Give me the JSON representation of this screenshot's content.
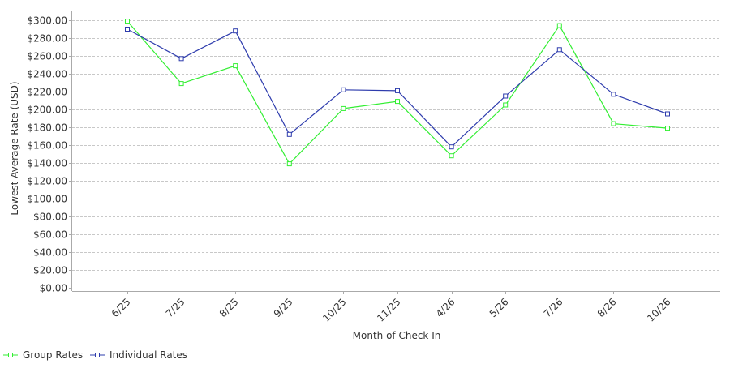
{
  "chart_data": {
    "type": "line",
    "categories": [
      "6/25",
      "7/25",
      "8/25",
      "9/25",
      "10/25",
      "11/25",
      "4/26",
      "5/26",
      "7/26",
      "8/26",
      "10/26"
    ],
    "series": [
      {
        "name": "Group Rates",
        "color": "#33ee33",
        "values": [
          299,
          229,
          249,
          139,
          201,
          209,
          148,
          205,
          294,
          184,
          179
        ]
      },
      {
        "name": "Individual Rates",
        "color": "#2e3cad",
        "values": [
          290,
          257,
          288,
          172,
          222,
          221,
          158,
          215,
          267,
          217,
          195
        ]
      }
    ],
    "xlabel": "Month of Check In",
    "ylabel": "Lowest Average Rate (USD)",
    "ylim": [
      0,
      300
    ],
    "ytick_step": 20,
    "ytick_labels": [
      "$0.00",
      "$20.00",
      "$40.00",
      "$60.00",
      "$80.00",
      "$100.00",
      "$120.00",
      "$140.00",
      "$160.00",
      "$180.00",
      "$200.00",
      "$220.00",
      "$240.00",
      "$260.00",
      "$280.00",
      "$300.00"
    ],
    "grid": true,
    "legend": "bottom-left",
    "colors": {
      "grid": "#c8c8c8",
      "axis": "#aaaaaa",
      "text": "#333333"
    }
  }
}
